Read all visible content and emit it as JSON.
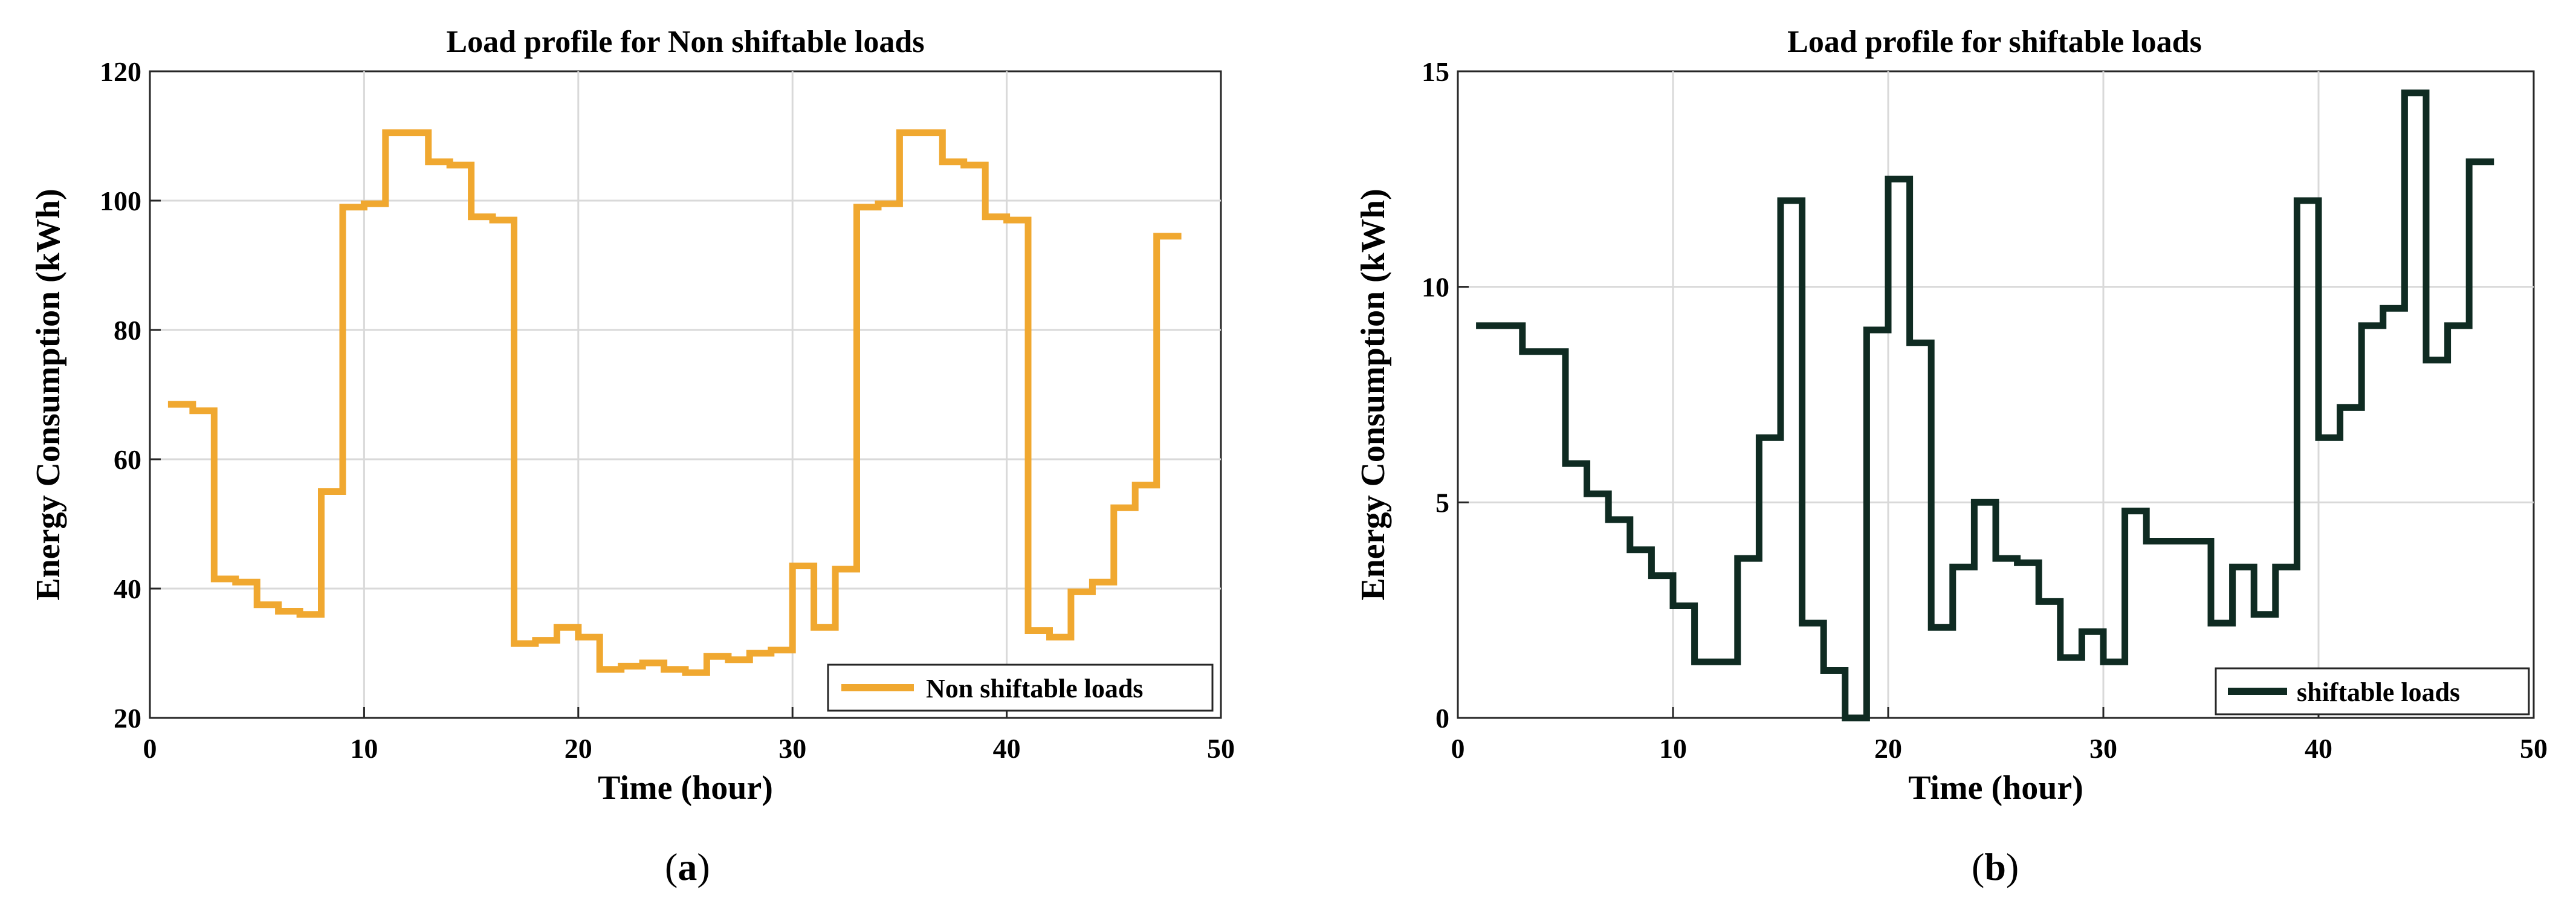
{
  "chart_data": [
    {
      "type": "line",
      "panel_label": "a",
      "title": "Load profile for Non shiftable loads",
      "xlabel": "Time (hour)",
      "ylabel": "Energy Consumption (kWh)",
      "xlim": [
        0,
        50
      ],
      "ylim": [
        20,
        120
      ],
      "xticks": [
        0,
        10,
        20,
        30,
        40,
        50
      ],
      "yticks": [
        20,
        40,
        60,
        80,
        100,
        120
      ],
      "grid": true,
      "step": true,
      "legend_position": "bottom-right",
      "series": [
        {
          "name": "Non shiftable loads",
          "color": "#f0a830",
          "x": [
            1,
            2,
            3,
            4,
            5,
            6,
            7,
            8,
            9,
            10,
            11,
            12,
            13,
            14,
            15,
            16,
            17,
            18,
            19,
            20,
            21,
            22,
            23,
            24,
            25,
            26,
            27,
            28,
            29,
            30,
            31,
            32,
            33,
            34,
            35,
            36,
            37,
            38,
            39,
            40,
            41,
            42,
            43,
            44,
            45,
            46,
            47,
            48
          ],
          "values": [
            68.5,
            67.5,
            41.5,
            41,
            37.5,
            36.5,
            36,
            55,
            99,
            99.5,
            110.5,
            110.5,
            106,
            105.5,
            97.5,
            97,
            31.5,
            32,
            34,
            32.5,
            27.5,
            28,
            28.5,
            27.5,
            27,
            29.5,
            29,
            30,
            30.5,
            43.5,
            34,
            43,
            99,
            99.5,
            110.5,
            110.5,
            106,
            105.5,
            97.5,
            97,
            33.5,
            32.5,
            39.5,
            41,
            52.5,
            56,
            94.5,
            94.5
          ]
        }
      ]
    },
    {
      "type": "line",
      "panel_label": "b",
      "title": "Load profile for shiftable loads",
      "xlabel": "Time (hour)",
      "ylabel": "Energy Consumption (kWh)",
      "xlim": [
        0,
        50
      ],
      "ylim": [
        0,
        15
      ],
      "xticks": [
        0,
        10,
        20,
        30,
        40,
        50
      ],
      "yticks": [
        0,
        5,
        10,
        15
      ],
      "grid": true,
      "step": true,
      "legend_position": "bottom-right",
      "series": [
        {
          "name": "shiftable loads",
          "color": "#0f2b22",
          "x": [
            1,
            2,
            3,
            4,
            5,
            6,
            7,
            8,
            9,
            10,
            11,
            12,
            13,
            14,
            15,
            16,
            17,
            18,
            19,
            20,
            21,
            22,
            23,
            24,
            25,
            26,
            27,
            28,
            29,
            30,
            31,
            32,
            33,
            34,
            35,
            36,
            37,
            38,
            39,
            40,
            41,
            42,
            43,
            44,
            45,
            46,
            47,
            48
          ],
          "values": [
            9.1,
            9.1,
            8.5,
            8.5,
            5.9,
            5.2,
            4.6,
            3.9,
            3.3,
            2.6,
            1.3,
            1.3,
            3.7,
            6.5,
            12,
            2.2,
            1.1,
            0,
            9,
            12.5,
            8.7,
            2.1,
            3.5,
            5,
            3.7,
            3.6,
            2.7,
            1.4,
            2,
            1.3,
            4.8,
            4.1,
            4.1,
            4.1,
            2.2,
            3.5,
            2.4,
            3.5,
            12,
            6.5,
            7.2,
            9.1,
            9.5,
            14.5,
            8.3,
            9.1,
            12.9,
            12.9
          ]
        }
      ]
    }
  ]
}
